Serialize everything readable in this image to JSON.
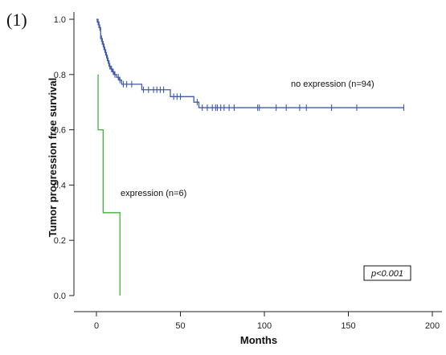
{
  "panel_label": "(1)",
  "p_value_text": "p<0.001",
  "colors": {
    "no_expression": "#3f5aa8",
    "expression": "#3cb43c"
  },
  "chart_data": {
    "type": "line",
    "subtype": "kaplan-meier step",
    "title": "",
    "xlabel": "Months",
    "ylabel": "Tumor progression free survival",
    "xlim": [
      -5,
      205
    ],
    "ylim": [
      -0.02,
      1.05
    ],
    "xticks": [
      0,
      50,
      100,
      150,
      200
    ],
    "yticks": [
      0.0,
      0.2,
      0.4,
      0.6,
      0.8,
      1.0
    ],
    "xtick_labels": [
      "0",
      "50",
      "100",
      "150",
      "200"
    ],
    "ytick_labels": [
      "0.0",
      "0.2",
      "0.4",
      "0.6",
      "0.8",
      "1.0"
    ],
    "grid": false,
    "series": [
      {
        "name": "no expression (n=94)",
        "color": "#3f5aa8",
        "steps": [
          [
            0,
            1.0
          ],
          [
            0.5,
            0.99
          ],
          [
            1.5,
            0.97
          ],
          [
            2.5,
            0.93
          ],
          [
            3.5,
            0.91
          ],
          [
            4.5,
            0.89
          ],
          [
            5.5,
            0.87
          ],
          [
            6.5,
            0.85
          ],
          [
            7.5,
            0.83
          ],
          [
            8.5,
            0.82
          ],
          [
            9.5,
            0.81
          ],
          [
            10.5,
            0.8
          ],
          [
            12,
            0.79
          ],
          [
            13.5,
            0.78
          ],
          [
            15,
            0.765
          ],
          [
            27,
            0.745
          ],
          [
            44,
            0.72
          ],
          [
            58,
            0.7
          ],
          [
            61,
            0.68
          ],
          [
            183,
            0.68
          ]
        ],
        "censored": [
          [
            1,
            0.99
          ],
          [
            2,
            0.97
          ],
          [
            3,
            0.93
          ],
          [
            4,
            0.91
          ],
          [
            5,
            0.89
          ],
          [
            6,
            0.87
          ],
          [
            7,
            0.85
          ],
          [
            8,
            0.83
          ],
          [
            9,
            0.82
          ],
          [
            10,
            0.81
          ],
          [
            11,
            0.8
          ],
          [
            13,
            0.79
          ],
          [
            14,
            0.78
          ],
          [
            16,
            0.765
          ],
          [
            18,
            0.765
          ],
          [
            21,
            0.765
          ],
          [
            28,
            0.745
          ],
          [
            31,
            0.745
          ],
          [
            34,
            0.745
          ],
          [
            36,
            0.745
          ],
          [
            38,
            0.745
          ],
          [
            40,
            0.745
          ],
          [
            46,
            0.72
          ],
          [
            48,
            0.72
          ],
          [
            50,
            0.72
          ],
          [
            60,
            0.7
          ],
          [
            63,
            0.68
          ],
          [
            66,
            0.68
          ],
          [
            69,
            0.68
          ],
          [
            71,
            0.68
          ],
          [
            72,
            0.68
          ],
          [
            74,
            0.68
          ],
          [
            76,
            0.68
          ],
          [
            79,
            0.68
          ],
          [
            82,
            0.68
          ],
          [
            96,
            0.68
          ],
          [
            97,
            0.68
          ],
          [
            107,
            0.68
          ],
          [
            113,
            0.68
          ],
          [
            121,
            0.68
          ],
          [
            125,
            0.68
          ],
          [
            140,
            0.68
          ],
          [
            155,
            0.68
          ],
          [
            183,
            0.68
          ]
        ]
      },
      {
        "name": "expression (n=6)",
        "color": "#3cb43c",
        "steps": [
          [
            1,
            0.8
          ],
          [
            1,
            0.6
          ],
          [
            4,
            0.6
          ],
          [
            4,
            0.3
          ],
          [
            14,
            0.3
          ],
          [
            14,
            0.0
          ]
        ],
        "censored": []
      }
    ]
  }
}
